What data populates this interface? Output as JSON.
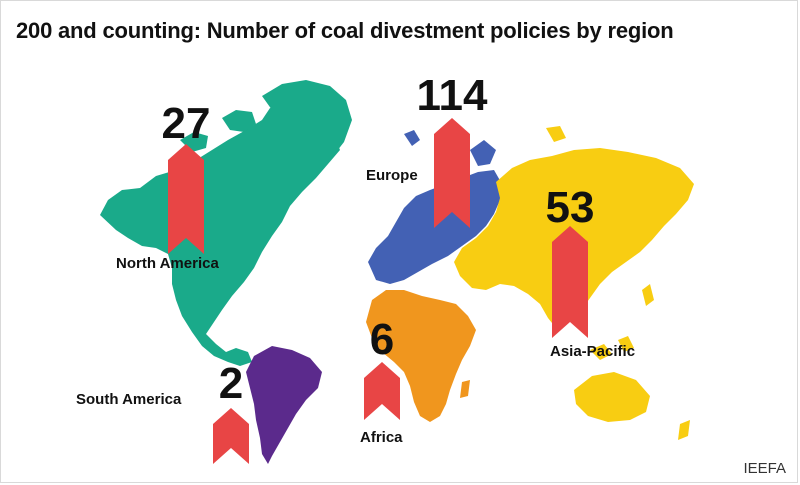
{
  "title": "200 and counting: Number of coal divestment policies by region",
  "source": "IEEFA",
  "colors": {
    "north_america": "#1aaa8a",
    "south_america": "#5b2a8c",
    "europe": "#4361b4",
    "africa": "#f0961e",
    "asia_pacific": "#f8cd12",
    "marker": "#e84545"
  },
  "chart_data": {
    "type": "bar",
    "title": "200 and counting: Number of coal divestment policies by region",
    "categories": [
      "North America",
      "South America",
      "Europe",
      "Africa",
      "Asia-Pacific"
    ],
    "values": [
      27,
      2,
      114,
      6,
      53
    ],
    "series": [
      {
        "values": [
          27,
          2,
          114,
          6,
          53
        ]
      }
    ],
    "xlabel": "",
    "ylabel": "",
    "grid": false,
    "legend": "none"
  }
}
